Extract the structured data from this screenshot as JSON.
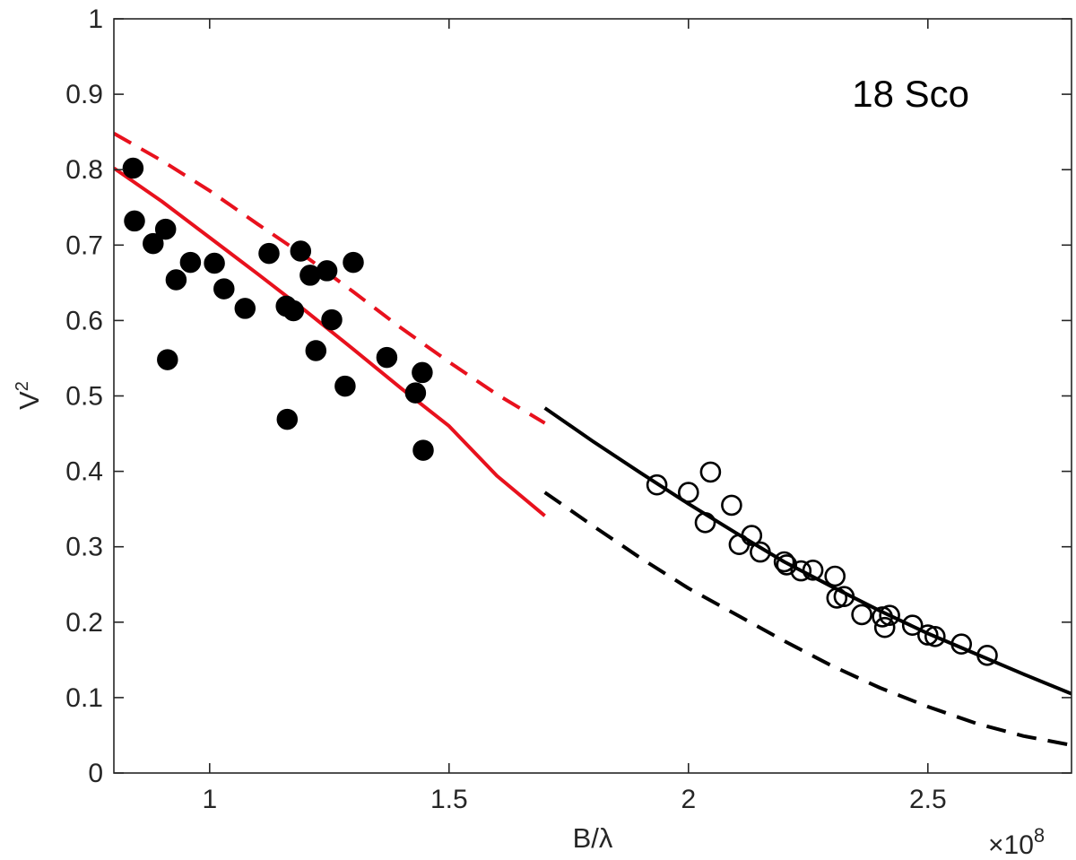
{
  "chart_data": {
    "type": "scatter",
    "title": "",
    "annotation": "18 Sco",
    "xlabel": "B/λ",
    "ylabel_base": "V",
    "ylabel_sup": "2",
    "x_multiplier_base": "×10",
    "x_multiplier_exp": "8",
    "xlim": [
      0.8,
      2.8
    ],
    "ylim": [
      0,
      1
    ],
    "x_ticks": [
      1,
      1.5,
      2,
      2.5
    ],
    "x_tick_labels": [
      "1",
      "1.5",
      "2",
      "2.5"
    ],
    "y_ticks": [
      0,
      0.1,
      0.2,
      0.3,
      0.4,
      0.5,
      0.6,
      0.7,
      0.8,
      0.9,
      1
    ],
    "y_tick_labels": [
      "0",
      "0.1",
      "0.2",
      "0.3",
      "0.4",
      "0.5",
      "0.6",
      "0.7",
      "0.8",
      "0.9",
      "1"
    ],
    "grid": false,
    "box": true,
    "colors": {
      "axis": "#262626",
      "red": "#e8111d",
      "black": "#000000"
    },
    "series": [
      {
        "marker": "filled-circle",
        "color": "#000000",
        "points": [
          [
            0.84,
            0.802
          ],
          [
            0.843,
            0.732
          ],
          [
            0.882,
            0.702
          ],
          [
            0.908,
            0.721
          ],
          [
            0.912,
            0.548
          ],
          [
            0.93,
            0.654
          ],
          [
            0.96,
            0.677
          ],
          [
            1.01,
            0.676
          ],
          [
            1.03,
            0.642
          ],
          [
            1.074,
            0.616
          ],
          [
            1.124,
            0.689
          ],
          [
            1.16,
            0.619
          ],
          [
            1.162,
            0.469
          ],
          [
            1.175,
            0.613
          ],
          [
            1.19,
            0.692
          ],
          [
            1.21,
            0.66
          ],
          [
            1.222,
            0.56
          ],
          [
            1.245,
            0.666
          ],
          [
            1.255,
            0.601
          ],
          [
            1.283,
            0.513
          ],
          [
            1.3,
            0.677
          ],
          [
            1.37,
            0.551
          ],
          [
            1.43,
            0.504
          ],
          [
            1.444,
            0.531
          ],
          [
            1.446,
            0.428
          ]
        ]
      },
      {
        "marker": "open-circle",
        "color": "#000000",
        "points": [
          [
            1.934,
            0.382
          ],
          [
            2.0,
            0.372
          ],
          [
            2.035,
            0.332
          ],
          [
            2.046,
            0.399
          ],
          [
            2.09,
            0.355
          ],
          [
            2.106,
            0.303
          ],
          [
            2.132,
            0.315
          ],
          [
            2.15,
            0.293
          ],
          [
            2.2,
            0.28
          ],
          [
            2.205,
            0.276
          ],
          [
            2.235,
            0.268
          ],
          [
            2.26,
            0.269
          ],
          [
            2.306,
            0.261
          ],
          [
            2.31,
            0.232
          ],
          [
            2.325,
            0.234
          ],
          [
            2.362,
            0.21
          ],
          [
            2.405,
            0.207
          ],
          [
            2.41,
            0.193
          ],
          [
            2.42,
            0.209
          ],
          [
            2.468,
            0.196
          ],
          [
            2.5,
            0.183
          ],
          [
            2.515,
            0.181
          ],
          [
            2.57,
            0.171
          ],
          [
            2.624,
            0.156
          ]
        ]
      },
      {
        "marker": "none",
        "line": "solid",
        "color": "#e8111d",
        "points": [
          [
            0.8,
            0.802
          ],
          [
            0.9,
            0.758
          ],
          [
            1.0,
            0.71
          ],
          [
            1.1,
            0.662
          ],
          [
            1.2,
            0.613
          ],
          [
            1.3,
            0.562
          ],
          [
            1.4,
            0.51
          ],
          [
            1.5,
            0.46
          ],
          [
            1.6,
            0.394
          ],
          [
            1.7,
            0.341
          ]
        ]
      },
      {
        "marker": "none",
        "line": "dashed",
        "color": "#e8111d",
        "points": [
          [
            0.8,
            0.848
          ],
          [
            0.9,
            0.812
          ],
          [
            1.0,
            0.772
          ],
          [
            1.1,
            0.728
          ],
          [
            1.2,
            0.685
          ],
          [
            1.3,
            0.638
          ],
          [
            1.4,
            0.59
          ],
          [
            1.5,
            0.545
          ],
          [
            1.6,
            0.502
          ],
          [
            1.7,
            0.464
          ]
        ]
      },
      {
        "marker": "none",
        "line": "solid",
        "color": "#000000",
        "points": [
          [
            1.7,
            0.484
          ],
          [
            1.8,
            0.44
          ],
          [
            1.9,
            0.398
          ],
          [
            2.0,
            0.357
          ],
          [
            2.1,
            0.318
          ],
          [
            2.2,
            0.28
          ],
          [
            2.3,
            0.247
          ],
          [
            2.4,
            0.215
          ],
          [
            2.5,
            0.185
          ],
          [
            2.6,
            0.158
          ],
          [
            2.7,
            0.131
          ],
          [
            2.8,
            0.105
          ]
        ]
      },
      {
        "marker": "none",
        "line": "dashed",
        "color": "#000000",
        "points": [
          [
            1.7,
            0.372
          ],
          [
            1.8,
            0.328
          ],
          [
            1.9,
            0.285
          ],
          [
            2.0,
            0.245
          ],
          [
            2.1,
            0.21
          ],
          [
            2.2,
            0.175
          ],
          [
            2.3,
            0.142
          ],
          [
            2.4,
            0.113
          ],
          [
            2.5,
            0.088
          ],
          [
            2.6,
            0.066
          ],
          [
            2.7,
            0.049
          ],
          [
            2.8,
            0.037
          ]
        ]
      }
    ]
  }
}
